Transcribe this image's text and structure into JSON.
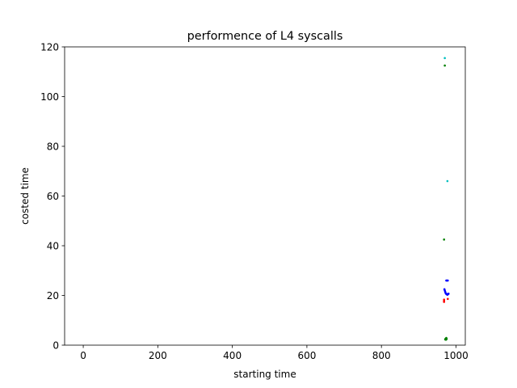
{
  "chart_data": {
    "type": "scatter",
    "title": "performence of L4 syscalls",
    "xlabel": "starting time",
    "ylabel": "costed time",
    "xlim": [
      -50,
      1025
    ],
    "ylim": [
      0,
      120
    ],
    "xticks": [
      0,
      200,
      400,
      600,
      800,
      1000
    ],
    "yticks": [
      0,
      20,
      40,
      60,
      80,
      100,
      120
    ],
    "xtick_labels": [
      "0",
      "200",
      "400",
      "600",
      "800",
      "1000"
    ],
    "ytick_labels": [
      "0",
      "20",
      "40",
      "60",
      "80",
      "100",
      "120"
    ],
    "grid": false,
    "series": [
      {
        "color": "#00bfbf",
        "x": [
          970,
          977
        ],
        "y": [
          115.5,
          66
        ]
      },
      {
        "color": "#008000",
        "x": [
          970,
          968,
          971,
          972,
          973,
          974,
          975
        ],
        "y": [
          112.5,
          42.5,
          2.3,
          2.6,
          2.2,
          2.9,
          2.5
        ]
      },
      {
        "color": "#0000ff",
        "x": [
          974,
          976,
          978,
          969,
          970,
          971,
          972,
          973,
          974,
          975,
          976,
          977,
          978,
          979,
          980
        ],
        "y": [
          26,
          26,
          26,
          22.5,
          22,
          21.5,
          21,
          20.8,
          20.6,
          20.5,
          20.4,
          20.3,
          20.5,
          20.6,
          20.7
        ]
      },
      {
        "color": "#ff0000",
        "x": [
          968,
          968,
          968,
          978
        ],
        "y": [
          18.3,
          17.8,
          17.4,
          18.6
        ]
      }
    ]
  }
}
